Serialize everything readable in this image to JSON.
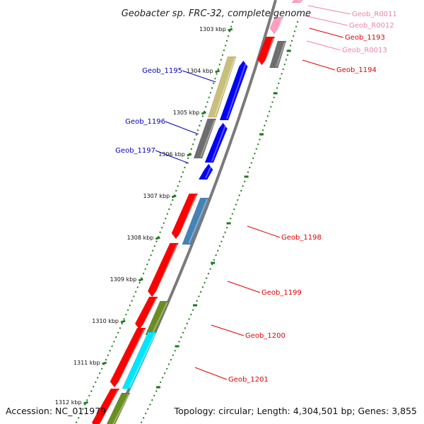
{
  "title": "Geobacter sp. FRC-32, complete genome",
  "accession": "Accession: NC_011979",
  "topology": "Topology: circular; Length: 4,304,501 bp; Genes: 3,855",
  "colors": {
    "backbone": "#7a7a7a",
    "kbp_tick": "#1f7a1f",
    "gene_red": "#ff0000",
    "gene_blue": "#0000ff",
    "gene_grey": "#6e6e6e",
    "gene_khaki": "#c8c07a",
    "gene_steelblue": "#4682b4",
    "gene_olive": "#6b8e23",
    "gene_cyan": "#00e5ff",
    "rna_pink": "#ff9ec0",
    "label_red": "#e00000",
    "label_blue": "#0000bb",
    "label_pink": "#ee82aa"
  },
  "kbp_marks": [
    "1303 kbp",
    "1304 kbp",
    "1305 kbp",
    "1306 kbp",
    "1307 kbp",
    "1308 kbp",
    "1309 kbp",
    "1310 kbp",
    "1311 kbp",
    "1312 kbp"
  ],
  "gene_labels": [
    {
      "text": "Geob_R0011",
      "color": "label_pink"
    },
    {
      "text": "Geob_R0012",
      "color": "label_pink"
    },
    {
      "text": "Geob_1193",
      "color": "label_red"
    },
    {
      "text": "Geob_R0013",
      "color": "label_pink"
    },
    {
      "text": "Geob_1194",
      "color": "label_red"
    },
    {
      "text": "Geob_1195",
      "color": "label_blue"
    },
    {
      "text": "Geob_1196",
      "color": "label_blue"
    },
    {
      "text": "Geob_1197",
      "color": "label_blue"
    },
    {
      "text": "Geob_1198",
      "color": "label_red"
    },
    {
      "text": "Geob_1199",
      "color": "label_red"
    },
    {
      "text": "Geob_1200",
      "color": "label_red"
    },
    {
      "text": "Geob_1201",
      "color": "label_red"
    }
  ]
}
